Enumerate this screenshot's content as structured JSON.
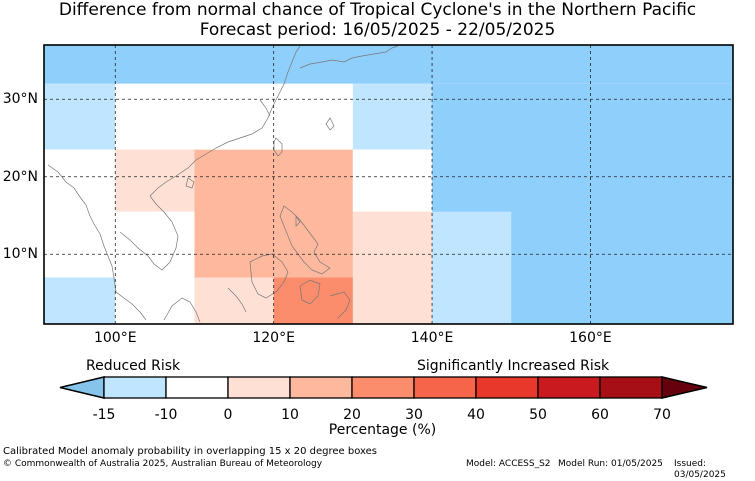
{
  "title_line1": "Difference from normal chance of Tropical Cyclone's in the Northern Pacific",
  "title_line2": "Forecast period: 16/05/2025 - 22/05/2025",
  "map": {
    "lon_range": [
      91,
      178
    ],
    "lat_range": [
      1,
      37
    ],
    "lon_ticks": [
      {
        "value": 100,
        "label": "100°E"
      },
      {
        "value": 120,
        "label": "120°E"
      },
      {
        "value": 140,
        "label": "140°E"
      },
      {
        "value": 160,
        "label": "160°E"
      }
    ],
    "lat_ticks": [
      {
        "value": 30,
        "label": "30°N"
      },
      {
        "value": 20,
        "label": "20°N"
      },
      {
        "value": 10,
        "label": "10°N"
      }
    ],
    "cells": [
      {
        "lon": [
          91,
          178
        ],
        "lat": [
          32,
          37
        ],
        "value": -15
      },
      {
        "lon": [
          140,
          178
        ],
        "lat": [
          1,
          32
        ],
        "value": -15
      },
      {
        "lon": [
          91,
          100
        ],
        "lat": [
          23.5,
          32
        ],
        "value": -10
      },
      {
        "lon": [
          100,
          130
        ],
        "lat": [
          23.5,
          32
        ],
        "value": 0
      },
      {
        "lon": [
          130,
          140
        ],
        "lat": [
          23.5,
          32
        ],
        "value": -10
      },
      {
        "lon": [
          91,
          100
        ],
        "lat": [
          7,
          23.5
        ],
        "value": 0
      },
      {
        "lon": [
          100,
          110
        ],
        "lat": [
          15.5,
          23.5
        ],
        "value": 10
      },
      {
        "lon": [
          110,
          130
        ],
        "lat": [
          7,
          23.5
        ],
        "value": 20
      },
      {
        "lon": [
          130,
          140
        ],
        "lat": [
          15.5,
          23.5
        ],
        "value": 0
      },
      {
        "lon": [
          100,
          110
        ],
        "lat": [
          1,
          15.5
        ],
        "value": 0
      },
      {
        "lon": [
          130,
          140
        ],
        "lat": [
          1,
          15.5
        ],
        "value": 10
      },
      {
        "lon": [
          140,
          150
        ],
        "lat": [
          1,
          15.5
        ],
        "value": -10
      },
      {
        "lon": [
          91,
          100
        ],
        "lat": [
          1,
          7
        ],
        "value": -10
      },
      {
        "lon": [
          110,
          120
        ],
        "lat": [
          1,
          7
        ],
        "value": 10
      },
      {
        "lon": [
          120,
          130
        ],
        "lat": [
          1,
          7
        ],
        "value": 30
      }
    ]
  },
  "legend": {
    "reduced_label": "Reduced Risk",
    "increased_label": "Significantly Increased Risk",
    "ticks": [
      "-15",
      "-10",
      "0",
      "10",
      "20",
      "30",
      "40",
      "50",
      "60",
      "70"
    ],
    "colors": [
      "#bfe5ff",
      "#ffffff",
      "#ffe0d4",
      "#fdb89e",
      "#fb8c6c",
      "#f6654a",
      "#e8382c",
      "#c91a1f",
      "#a50f15"
    ],
    "under_color": "#87c4ec",
    "over_color": "#67000d",
    "xlabel": "Percentage (%)"
  },
  "colors": {
    "level_-15": "#8fcffc",
    "level_-10": "#bfe5ff",
    "level_0": "#ffffff",
    "level_10": "#ffe0d4",
    "level_20": "#fdb89e",
    "level_30": "#fb8c6c"
  },
  "footer": {
    "note": "Calibrated Model anomaly probability in overlapping 15 x 20 degree boxes",
    "copyright": "© Commonwealth of Australia 2025, Australian Bureau of Meteorology",
    "model": "Model: ACCESS_S2",
    "run": "Model Run: 01/05/2025",
    "issued": "Issued: 03/05/2025"
  }
}
